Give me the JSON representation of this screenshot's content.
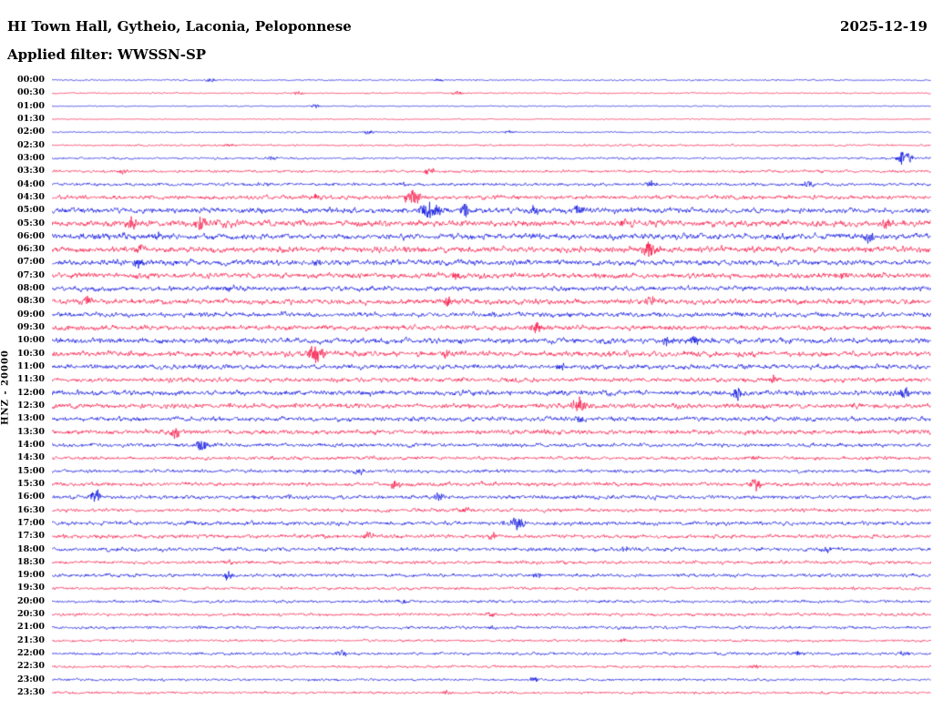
{
  "header": {
    "title": "HI Town Hall, Gytheio, Laconia, Peloponnese",
    "date": "2025-12-19",
    "filter_label": "Applied filter: WWSSN-SP"
  },
  "axis": {
    "left_label": "HNZ - 20000"
  },
  "chart_data": {
    "type": "line",
    "title": "Helicorder seismogram, HI Town Hall, Gytheio, Laconia, Peloponnese",
    "subtitle": "Applied filter: WWSSN-SP",
    "date": "2025-12-19",
    "ylabel": "HNZ - 20000",
    "row_duration_minutes": 30,
    "start_time": "00:00",
    "end_time": "23:30",
    "legend": "alternating blue/red half-hour traces",
    "colors": {
      "blue": "#0008dd",
      "red": "#f70d3f"
    },
    "rows": [
      {
        "label": "00:00",
        "color": "blue",
        "amp": 1.2,
        "events": [
          {
            "x": 0.18,
            "a": 2.5
          },
          {
            "x": 0.44,
            "a": 1.5
          }
        ]
      },
      {
        "label": "00:30",
        "color": "red",
        "amp": 1.2,
        "events": [
          {
            "x": 0.28,
            "a": 2
          },
          {
            "x": 0.46,
            "a": 2
          }
        ]
      },
      {
        "label": "01:00",
        "color": "blue",
        "amp": 1.0,
        "events": [
          {
            "x": 0.3,
            "a": 2
          }
        ]
      },
      {
        "label": "01:30",
        "color": "red",
        "amp": 0.9,
        "events": []
      },
      {
        "label": "02:00",
        "color": "blue",
        "amp": 1.3,
        "events": [
          {
            "x": 0.36,
            "a": 2
          },
          {
            "x": 0.52,
            "a": 2.5
          }
        ]
      },
      {
        "label": "02:30",
        "color": "red",
        "amp": 1.6,
        "events": [
          {
            "x": 0.2,
            "a": 1.5
          }
        ]
      },
      {
        "label": "03:00",
        "color": "blue",
        "amp": 1.8,
        "events": [
          {
            "x": 0.97,
            "a": 9,
            "w": 0.008
          },
          {
            "x": 0.25,
            "a": 2
          }
        ]
      },
      {
        "label": "03:30",
        "color": "red",
        "amp": 2.2,
        "events": [
          {
            "x": 0.43,
            "a": 4
          },
          {
            "x": 0.08,
            "a": 2
          }
        ]
      },
      {
        "label": "04:00",
        "color": "blue",
        "amp": 2.6,
        "events": [
          {
            "x": 0.68,
            "a": 3
          },
          {
            "x": 0.86,
            "a": 4
          },
          {
            "x": 0.4,
            "a": 2
          }
        ]
      },
      {
        "label": "04:30",
        "color": "red",
        "amp": 3.5,
        "events": [
          {
            "x": 0.41,
            "a": 8,
            "w": 0.01
          },
          {
            "x": 0.3,
            "a": 3
          }
        ]
      },
      {
        "label": "05:00",
        "color": "blue",
        "amp": 4.5,
        "events": [
          {
            "x": 0.43,
            "a": 9,
            "w": 0.012
          },
          {
            "x": 0.47,
            "a": 7
          },
          {
            "x": 0.6,
            "a": 5
          },
          {
            "x": 0.55,
            "a": 4
          }
        ]
      },
      {
        "label": "05:30",
        "color": "red",
        "amp": 5,
        "events": [
          {
            "x": 0.09,
            "a": 8
          },
          {
            "x": 0.17,
            "a": 8
          },
          {
            "x": 0.65,
            "a": 4
          },
          {
            "x": 0.95,
            "a": 5
          }
        ]
      },
      {
        "label": "06:00",
        "color": "blue",
        "amp": 5,
        "events": [
          {
            "x": 0.93,
            "a": 7
          },
          {
            "x": 0.12,
            "a": 4
          },
          {
            "x": 0.55,
            "a": 4
          }
        ]
      },
      {
        "label": "06:30",
        "color": "red",
        "amp": 5,
        "events": [
          {
            "x": 0.68,
            "a": 8,
            "w": 0.01
          },
          {
            "x": 0.1,
            "a": 5
          }
        ]
      },
      {
        "label": "07:00",
        "color": "blue",
        "amp": 4.5,
        "events": [
          {
            "x": 0.1,
            "a": 5
          },
          {
            "x": 0.3,
            "a": 4
          }
        ]
      },
      {
        "label": "07:30",
        "color": "red",
        "amp": 4.5,
        "events": [
          {
            "x": 0.46,
            "a": 4
          },
          {
            "x": 0.9,
            "a": 4
          }
        ]
      },
      {
        "label": "08:00",
        "color": "blue",
        "amp": 4,
        "events": [
          {
            "x": 0.2,
            "a": 3
          }
        ]
      },
      {
        "label": "08:30",
        "color": "red",
        "amp": 4.5,
        "events": [
          {
            "x": 0.04,
            "a": 6
          },
          {
            "x": 0.45,
            "a": 5
          },
          {
            "x": 0.68,
            "a": 6
          }
        ]
      },
      {
        "label": "09:00",
        "color": "blue",
        "amp": 4,
        "events": [
          {
            "x": 0.5,
            "a": 3
          }
        ]
      },
      {
        "label": "09:30",
        "color": "red",
        "amp": 4,
        "events": [
          {
            "x": 0.55,
            "a": 6
          }
        ]
      },
      {
        "label": "10:00",
        "color": "blue",
        "amp": 4.5,
        "events": [
          {
            "x": 0.7,
            "a": 6
          },
          {
            "x": 0.73,
            "a": 5
          }
        ]
      },
      {
        "label": "10:30",
        "color": "red",
        "amp": 4.5,
        "events": [
          {
            "x": 0.3,
            "a": 9,
            "w": 0.01
          },
          {
            "x": 0.45,
            "a": 4
          }
        ]
      },
      {
        "label": "11:00",
        "color": "blue",
        "amp": 4,
        "events": [
          {
            "x": 0.58,
            "a": 4
          }
        ]
      },
      {
        "label": "11:30",
        "color": "red",
        "amp": 3.8,
        "events": [
          {
            "x": 0.82,
            "a": 4
          }
        ]
      },
      {
        "label": "12:00",
        "color": "blue",
        "amp": 4.2,
        "events": [
          {
            "x": 0.78,
            "a": 7
          },
          {
            "x": 0.97,
            "a": 7
          }
        ]
      },
      {
        "label": "12:30",
        "color": "red",
        "amp": 4.2,
        "events": [
          {
            "x": 0.6,
            "a": 8,
            "w": 0.01
          }
        ]
      },
      {
        "label": "13:00",
        "color": "blue",
        "amp": 3.8,
        "events": [
          {
            "x": 0.6,
            "a": 4
          }
        ]
      },
      {
        "label": "13:30",
        "color": "red",
        "amp": 3.8,
        "events": [
          {
            "x": 0.14,
            "a": 8
          }
        ]
      },
      {
        "label": "14:00",
        "color": "blue",
        "amp": 3.2,
        "events": [
          {
            "x": 0.17,
            "a": 7
          }
        ]
      },
      {
        "label": "14:30",
        "color": "red",
        "amp": 2.8,
        "events": [
          {
            "x": 0.8,
            "a": 2
          }
        ]
      },
      {
        "label": "15:00",
        "color": "blue",
        "amp": 2.8,
        "events": [
          {
            "x": 0.35,
            "a": 3
          }
        ]
      },
      {
        "label": "15:30",
        "color": "red",
        "amp": 3.2,
        "events": [
          {
            "x": 0.39,
            "a": 5
          },
          {
            "x": 0.8,
            "a": 6
          }
        ]
      },
      {
        "label": "16:00",
        "color": "blue",
        "amp": 3.2,
        "events": [
          {
            "x": 0.05,
            "a": 7
          },
          {
            "x": 0.27,
            "a": 3
          },
          {
            "x": 0.44,
            "a": 4
          }
        ]
      },
      {
        "label": "16:30",
        "color": "red",
        "amp": 2.8,
        "events": [
          {
            "x": 0.47,
            "a": 3
          }
        ]
      },
      {
        "label": "17:00",
        "color": "blue",
        "amp": 3.2,
        "events": [
          {
            "x": 0.53,
            "a": 7,
            "w": 0.008
          }
        ]
      },
      {
        "label": "17:30",
        "color": "red",
        "amp": 3.2,
        "events": [
          {
            "x": 0.36,
            "a": 4
          },
          {
            "x": 0.5,
            "a": 3
          }
        ]
      },
      {
        "label": "18:00",
        "color": "blue",
        "amp": 3.2,
        "events": [
          {
            "x": 0.65,
            "a": 3
          },
          {
            "x": 0.88,
            "a": 3
          }
        ]
      },
      {
        "label": "18:30",
        "color": "red",
        "amp": 2.8,
        "events": [
          {
            "x": 0.2,
            "a": 2
          }
        ]
      },
      {
        "label": "19:00",
        "color": "blue",
        "amp": 2.8,
        "events": [
          {
            "x": 0.2,
            "a": 4
          },
          {
            "x": 0.55,
            "a": 3
          }
        ]
      },
      {
        "label": "19:30",
        "color": "red",
        "amp": 2.4,
        "events": []
      },
      {
        "label": "20:00",
        "color": "blue",
        "amp": 2.4,
        "events": [
          {
            "x": 0.4,
            "a": 2
          }
        ]
      },
      {
        "label": "20:30",
        "color": "red",
        "amp": 2.4,
        "events": [
          {
            "x": 0.5,
            "a": 2.5
          }
        ]
      },
      {
        "label": "21:00",
        "color": "blue",
        "amp": 2.4,
        "events": [
          {
            "x": 0.17,
            "a": 2.5
          },
          {
            "x": 0.5,
            "a": 2
          }
        ]
      },
      {
        "label": "21:30",
        "color": "red",
        "amp": 2,
        "events": [
          {
            "x": 0.65,
            "a": 2
          }
        ]
      },
      {
        "label": "22:00",
        "color": "blue",
        "amp": 2.4,
        "events": [
          {
            "x": 0.33,
            "a": 4
          },
          {
            "x": 0.85,
            "a": 3
          },
          {
            "x": 0.97,
            "a": 3
          }
        ]
      },
      {
        "label": "22:30",
        "color": "red",
        "amp": 2,
        "events": [
          {
            "x": 0.8,
            "a": 2
          }
        ]
      },
      {
        "label": "23:00",
        "color": "blue",
        "amp": 2,
        "events": [
          {
            "x": 0.55,
            "a": 3
          }
        ]
      },
      {
        "label": "23:30",
        "color": "red",
        "amp": 2,
        "events": [
          {
            "x": 0.45,
            "a": 2
          }
        ]
      }
    ]
  }
}
